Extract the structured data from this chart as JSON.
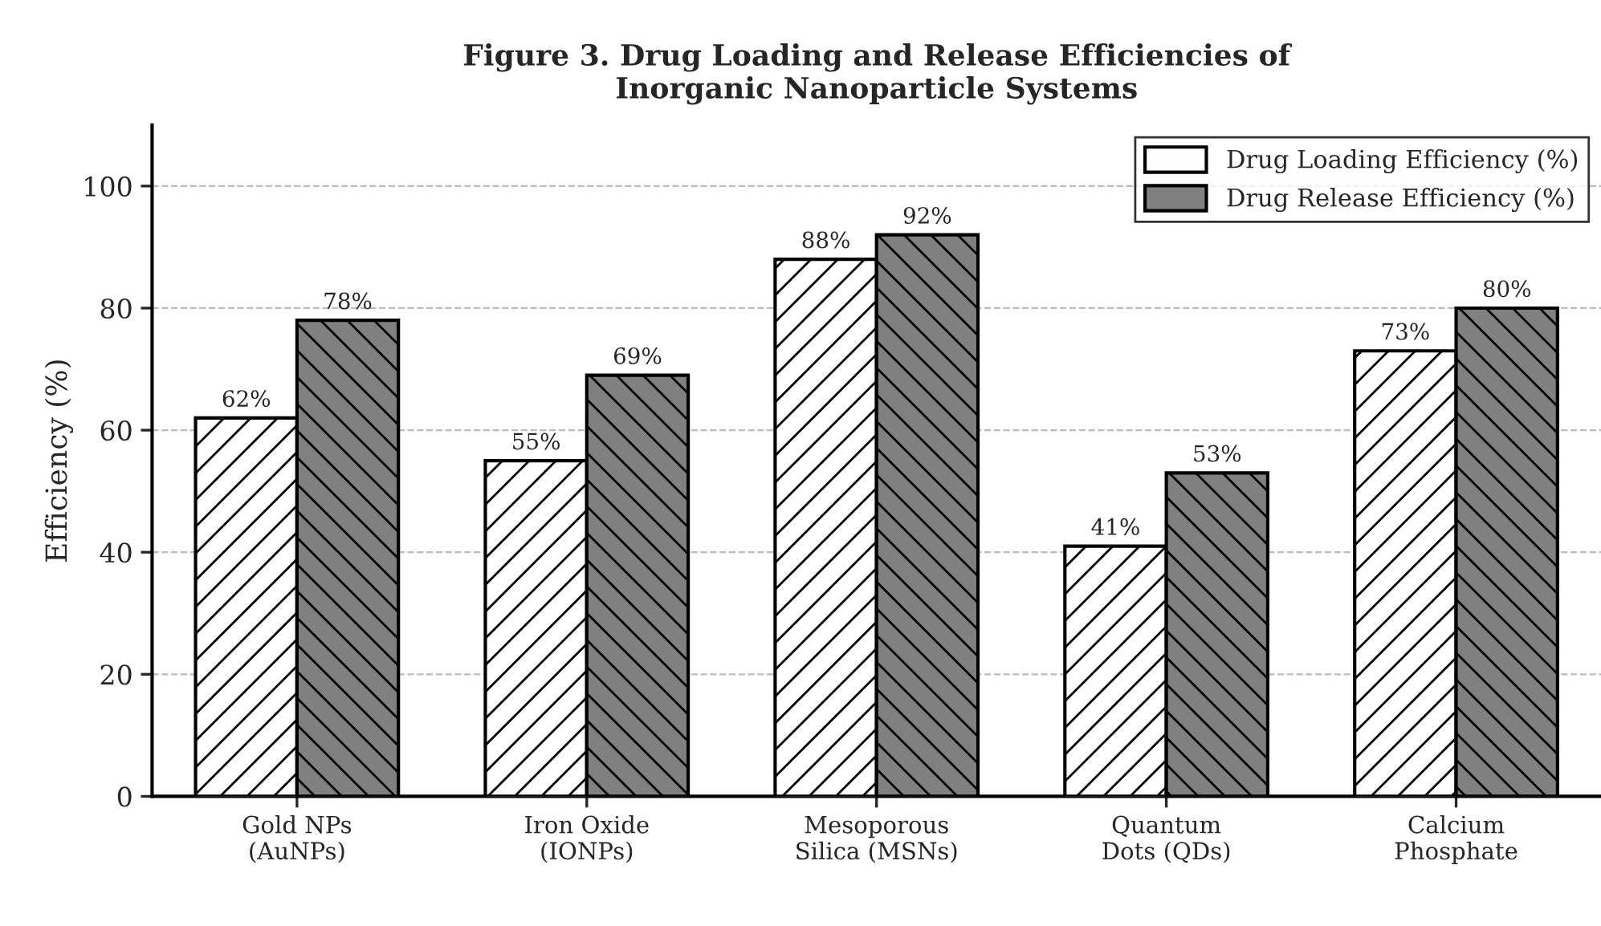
{
  "chart_data": {
    "type": "bar",
    "title": "Figure 3. Drug Loading and Release Efficiencies of\nInorganic Nanoparticle Systems",
    "ylabel": "Efficiency (%)",
    "categories": [
      "Gold NPs\n(AuNPs)",
      "Iron Oxide\n(IONPs)",
      "Mesoporous\nSilica (MSNs)",
      "Quantum\nDots (QDs)",
      "Calcium\nPhosphate"
    ],
    "series": [
      {
        "name": "Drug Loading Efficiency (%)",
        "color": "#ffffff",
        "values": [
          62,
          55,
          88,
          41,
          73
        ],
        "value_labels": [
          "62%",
          "55%",
          "88%",
          "41%",
          "73%"
        ]
      },
      {
        "name": "Drug Release Efficiency (%)",
        "color": "#808080",
        "values": [
          78,
          69,
          92,
          53,
          80
        ],
        "value_labels": [
          "78%",
          "69%",
          "92%",
          "53%",
          "80%"
        ]
      }
    ],
    "ylim": [
      0,
      110
    ],
    "yticks": [
      0,
      20,
      40,
      60,
      80,
      100
    ],
    "grid": "y",
    "legend": "top right"
  }
}
